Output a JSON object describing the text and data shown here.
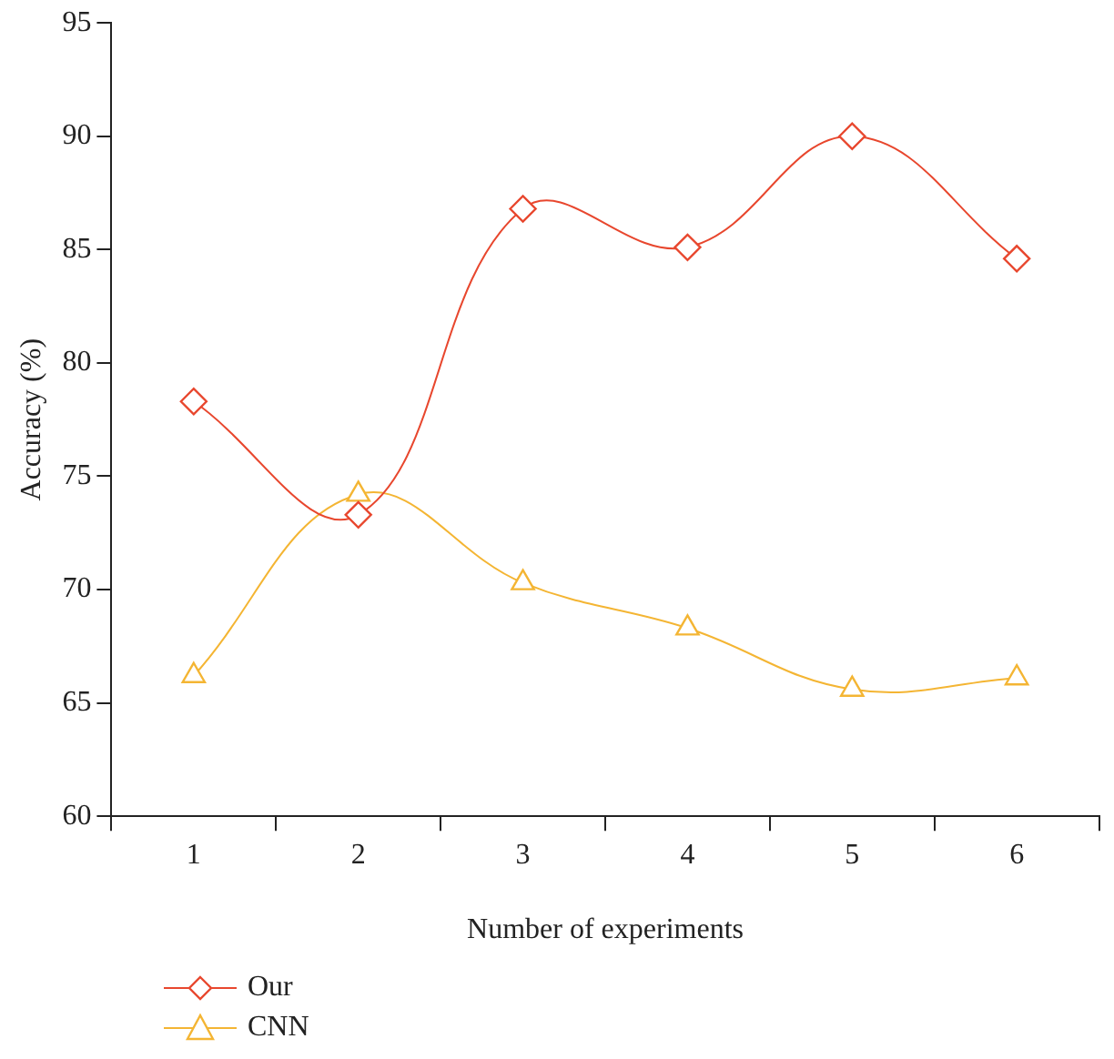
{
  "chart_data": {
    "type": "line",
    "xlabel": "Number of experiments",
    "ylabel": "Accuracy (%)",
    "categories": [
      "1",
      "2",
      "3",
      "4",
      "5",
      "6"
    ],
    "series": [
      {
        "name": "Our",
        "color": "#e8472e",
        "marker": "diamond",
        "values": [
          78.3,
          73.3,
          86.8,
          85.1,
          90.0,
          84.6
        ]
      },
      {
        "name": "CNN",
        "color": "#f4b533",
        "marker": "triangle",
        "values": [
          66.2,
          74.2,
          70.3,
          68.3,
          65.6,
          66.1
        ]
      }
    ],
    "ylim": [
      60,
      95
    ],
    "yticks": [
      60,
      65,
      70,
      75,
      80,
      85,
      90,
      95
    ],
    "grid": false,
    "legend": "bottom left"
  }
}
